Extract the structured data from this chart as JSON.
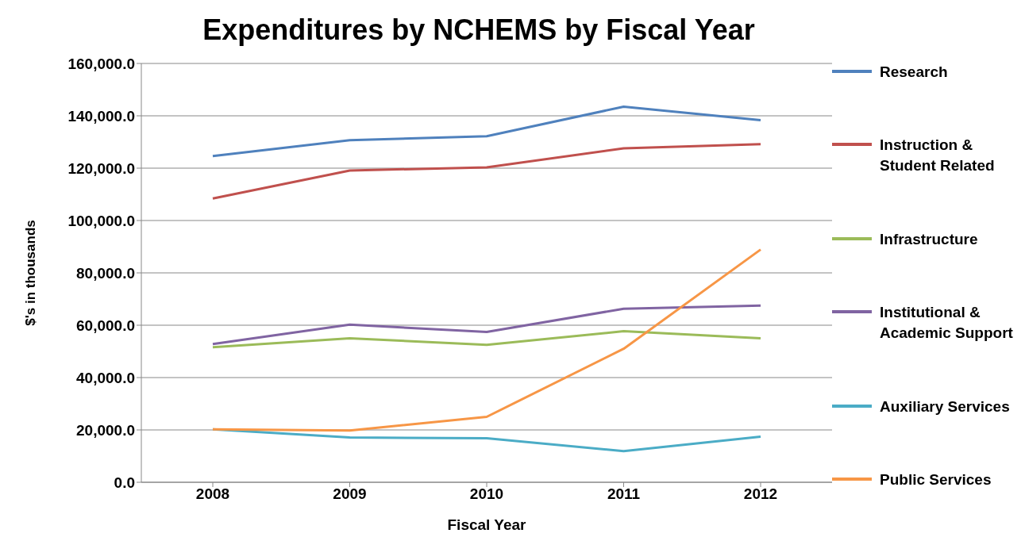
{
  "chart_data": {
    "type": "line",
    "title": "Expenditures by NCHEMS by Fiscal Year",
    "xlabel": "Fiscal Year",
    "ylabel": "$'s in thousands",
    "categories": [
      "2008",
      "2009",
      "2010",
      "2011",
      "2012"
    ],
    "series": [
      {
        "name": "Research",
        "color": "#4f81bd",
        "values": [
          124600,
          130700,
          132200,
          143500,
          138300
        ]
      },
      {
        "name": "Instruction & Student Related",
        "color": "#c0504d",
        "values": [
          108400,
          119100,
          120300,
          127600,
          129200
        ]
      },
      {
        "name": "Infrastructure",
        "color": "#9bbb59",
        "values": [
          51600,
          55000,
          52500,
          57700,
          55000
        ]
      },
      {
        "name": "Institutional & Academic Support",
        "color": "#8064a2",
        "values": [
          52800,
          60200,
          57400,
          66300,
          67500
        ]
      },
      {
        "name": "Auxiliary Services",
        "color": "#4bacc6",
        "values": [
          20200,
          17100,
          16800,
          11900,
          17400
        ]
      },
      {
        "name": "Public Services",
        "color": "#f79646",
        "values": [
          20200,
          19800,
          25000,
          51000,
          88900
        ]
      }
    ],
    "ylim": [
      0,
      160000
    ],
    "yticks": [
      {
        "value": 0,
        "label": "0.0"
      },
      {
        "value": 20000,
        "label": "20,000.0"
      },
      {
        "value": 40000,
        "label": "40,000.0"
      },
      {
        "value": 60000,
        "label": "60,000.0"
      },
      {
        "value": 80000,
        "label": "80,000.0"
      },
      {
        "value": 100000,
        "label": "100,000.0"
      },
      {
        "value": 120000,
        "label": "120,000.0"
      },
      {
        "value": 140000,
        "label": "140,000.0"
      },
      {
        "value": 160000,
        "label": "160,000.0"
      }
    ],
    "grid": "y",
    "legend": "right",
    "marker": "none",
    "line_style": "solid"
  }
}
